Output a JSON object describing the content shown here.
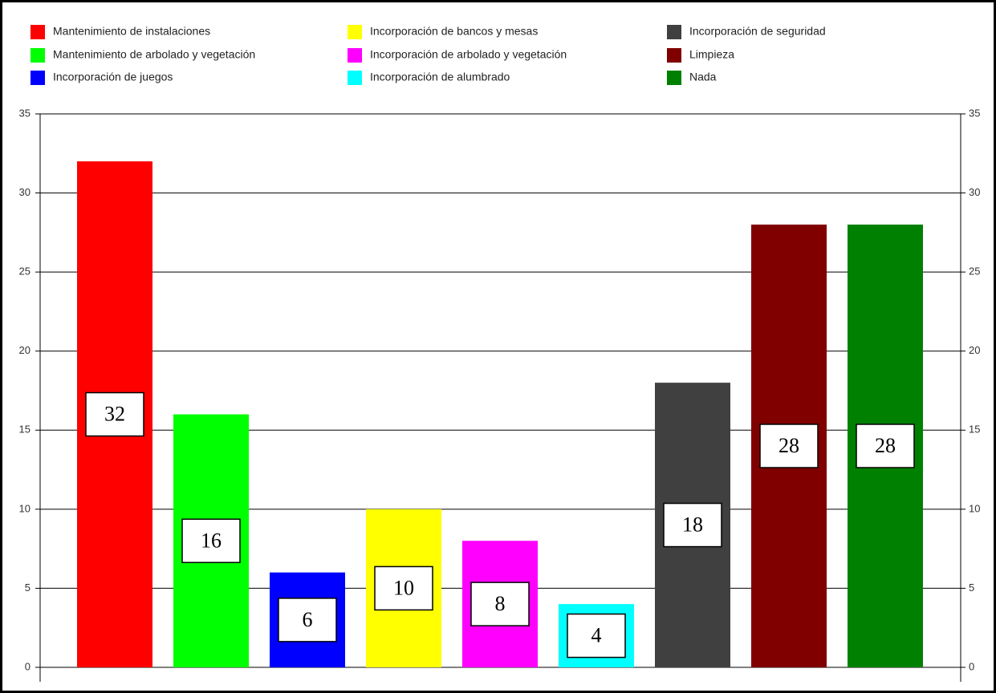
{
  "chart_data": {
    "type": "bar",
    "categories": [
      "Mantenimiento de instalaciones",
      "Mantenimiento de arbolado y vegetación",
      "Incorporación de juegos",
      "Incorporación de bancos y mesas",
      "Incorporación de arbolado y vegetación",
      "Incorporación de alumbrado",
      "Incorporación de seguridad",
      "Limpieza",
      "Nada"
    ],
    "values": [
      32,
      16,
      6,
      10,
      8,
      4,
      18,
      28,
      28
    ],
    "colors": [
      "#ff0000",
      "#00ff00",
      "#0000ff",
      "#ffff00",
      "#ff00ff",
      "#00ffff",
      "#404040",
      "#800000",
      "#008000"
    ],
    "ylim": [
      0,
      35
    ],
    "yticks": [
      0,
      5,
      10,
      15,
      20,
      25,
      30,
      35
    ],
    "y2lim": [
      0,
      35
    ],
    "y2ticks": [
      0,
      5,
      10,
      15,
      20,
      25,
      30,
      35
    ],
    "grid": true,
    "legend": "top"
  }
}
